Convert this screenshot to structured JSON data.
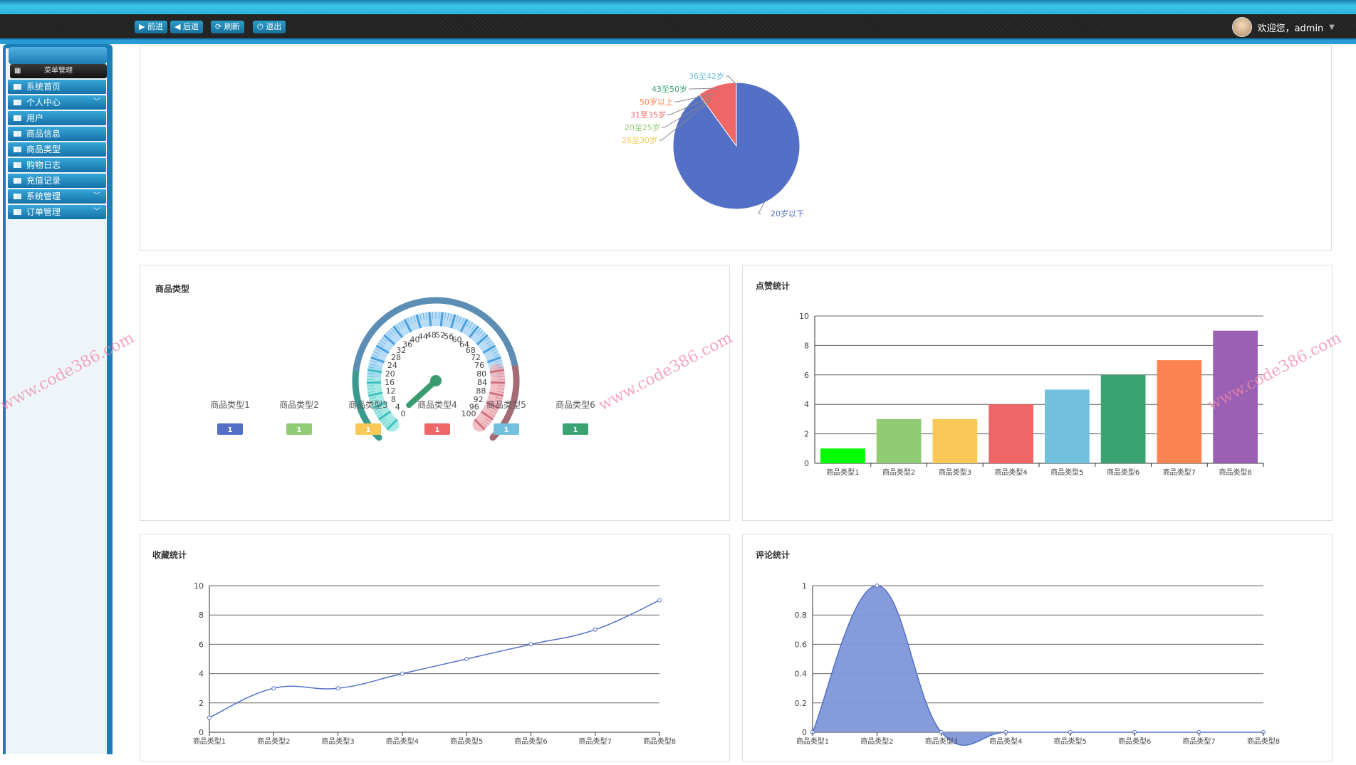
{
  "toolbar": {
    "forward": "▶ 前进",
    "back": "◀ 后退",
    "refresh": "⟳ 刷新",
    "logout": "⏻ 退出"
  },
  "user": {
    "greeting": "欢迎您，admin",
    "dropdown_icon": "▼"
  },
  "sidebar": {
    "header": "菜单管理",
    "items": [
      {
        "label": "系统首页",
        "expandable": false
      },
      {
        "label": "个人中心",
        "expandable": true
      },
      {
        "label": "用户",
        "expandable": false
      },
      {
        "label": "商品信息",
        "expandable": false
      },
      {
        "label": "商品类型",
        "expandable": false
      },
      {
        "label": "购物日志",
        "expandable": false
      },
      {
        "label": "充值记录",
        "expandable": false
      },
      {
        "label": "系统管理",
        "expandable": true
      },
      {
        "label": "订单管理",
        "expandable": true
      }
    ]
  },
  "watermark": "www.code386.com",
  "chart_data": [
    {
      "type": "pie",
      "title": "",
      "categories": [
        "20岁以下",
        "31至35岁",
        "50岁以上",
        "43至50岁",
        "36至42岁",
        "20至25岁",
        "26至30岁"
      ],
      "values": [
        9,
        1,
        0,
        0,
        0,
        0,
        0
      ],
      "colors": [
        "#5470c6",
        "#ee6666",
        "#fc8452",
        "#3ba272",
        "#73c0de",
        "#91cc75",
        "#fac858"
      ]
    },
    {
      "type": "gauge",
      "title": "商品类型",
      "min": 0,
      "max": 100,
      "value": 1,
      "tick_labels": [
        0,
        4,
        8,
        12,
        16,
        20,
        24,
        28,
        32,
        36,
        40,
        44,
        48,
        52,
        56,
        60,
        64,
        68,
        72,
        76,
        80,
        84,
        88,
        92,
        96,
        100
      ],
      "legend": [
        {
          "name": "商品类型1",
          "value": "1",
          "color": "#5470c6"
        },
        {
          "name": "商品类型2",
          "value": "1",
          "color": "#91cc75"
        },
        {
          "name": "商品类型3",
          "value": "1",
          "color": "#fac858"
        },
        {
          "name": "商品类型4",
          "value": "1",
          "color": "#ee6666"
        },
        {
          "name": "商品类型5",
          "value": "1",
          "color": "#73c0de"
        },
        {
          "name": "商品类型6",
          "value": "1",
          "color": "#3ba272"
        }
      ]
    },
    {
      "type": "bar",
      "title": "点赞统计",
      "categories": [
        "商品类型1",
        "商品类型2",
        "商品类型3",
        "商品类型4",
        "商品类型5",
        "商品类型6",
        "商品类型7",
        "商品类型8"
      ],
      "values": [
        1,
        3,
        3,
        4,
        5,
        6,
        7,
        9
      ],
      "ylim": [
        0,
        10
      ],
      "yticks": [
        0,
        2,
        4,
        6,
        8,
        10
      ],
      "colors": [
        "#00ff00",
        "#91cc75",
        "#fac858",
        "#ee6666",
        "#73c0de",
        "#3ba272",
        "#fc8452",
        "#9a60b4"
      ],
      "grid": true
    },
    {
      "type": "line",
      "title": "收藏统计",
      "categories": [
        "商品类型1",
        "商品类型2",
        "商品类型3",
        "商品类型4",
        "商品类型5",
        "商品类型6",
        "商品类型7",
        "商品类型8"
      ],
      "values": [
        1,
        3,
        3,
        4,
        5,
        6,
        7,
        9
      ],
      "ylim": [
        0,
        10
      ],
      "yticks": [
        0,
        2,
        4,
        6,
        8,
        10
      ],
      "color": "#5470c6",
      "smooth": true,
      "grid": true
    },
    {
      "type": "area",
      "title": "评论统计",
      "categories": [
        "商品类型1",
        "商品类型2",
        "商品类型3",
        "商品类型4",
        "商品类型5",
        "商品类型6",
        "商品类型7",
        "商品类型8"
      ],
      "values": [
        0,
        1,
        0,
        0,
        0,
        0,
        0,
        0
      ],
      "ylim": [
        0,
        1
      ],
      "yticks": [
        "0",
        "0.2",
        "0.4",
        "0.6",
        "0.8",
        "1"
      ],
      "color": "#5470c6",
      "smooth": true,
      "grid": true
    }
  ]
}
